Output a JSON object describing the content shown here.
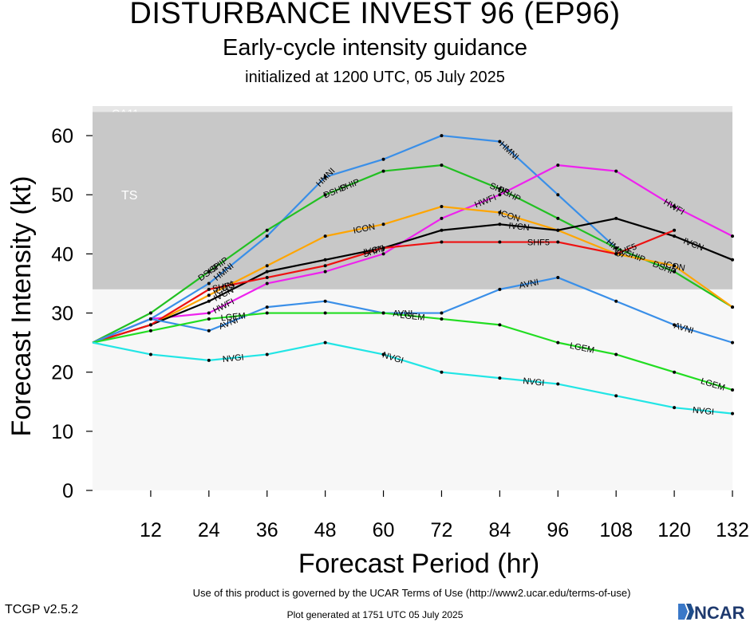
{
  "title": "DISTURBANCE INVEST 96 (EP96)",
  "subtitle": "Early-cycle intensity guidance",
  "initialized": "initialized at 1200 UTC, 05 July 2025",
  "footer": {
    "terms": "Use of this product is governed by the UCAR Terms of Use (http://www2.ucar.edu/terms-of-use)",
    "version": "TCGP v2.5.2",
    "generated": "Plot generated at 1751 UTC   05 July 2025",
    "logo_text": "NCAR"
  },
  "chart_data": {
    "type": "line",
    "xlabel": "Forecast Period (hr)",
    "ylabel": "Forecast Intensity (kt)",
    "xlim": [
      0,
      132
    ],
    "ylim": [
      0,
      65
    ],
    "xticks": [
      12,
      24,
      36,
      48,
      60,
      72,
      84,
      96,
      108,
      120,
      132
    ],
    "yticks": [
      0,
      10,
      20,
      30,
      40,
      50,
      60
    ],
    "bands": [
      {
        "label": "CA11",
        "from": 64,
        "to": 65,
        "color": "#e6e6e6"
      },
      {
        "label": "TS",
        "from": 34,
        "to": 64,
        "color": "#c8c8c8"
      },
      {
        "label": "",
        "from": 0,
        "to": 34,
        "color": "#f7f7f7"
      }
    ],
    "series": [
      {
        "name": "HMNI",
        "color": "#3a8fe8",
        "x": [
          0,
          12,
          24,
          36,
          48,
          60,
          72,
          84,
          96,
          108,
          120
        ],
        "y": [
          25,
          29,
          35,
          43,
          53,
          56,
          60,
          59,
          50,
          41,
          37
        ],
        "label_at": [
          27,
          48,
          86,
          108
        ]
      },
      {
        "name": "DSHP",
        "color": "#22c022",
        "x": [
          0,
          12,
          24,
          36,
          48,
          60,
          72,
          84,
          96,
          108,
          120,
          132
        ],
        "y": [
          25,
          30,
          37,
          44,
          50,
          54,
          55,
          51,
          46,
          41,
          37,
          31
        ],
        "label_at": [
          24,
          50,
          86,
          118
        ]
      },
      {
        "name": "SHIP",
        "color": "#22c022",
        "x": [],
        "y": [],
        "label_at": [
          26,
          53,
          84,
          112
        ]
      },
      {
        "name": "HWFI",
        "color": "#ee22ee",
        "x": [
          0,
          12,
          24,
          36,
          48,
          60,
          72,
          84,
          96,
          108,
          120,
          132
        ],
        "y": [
          25,
          29,
          30,
          35,
          37,
          40,
          46,
          50,
          55,
          54,
          48,
          43
        ],
        "label_at": [
          27,
          81,
          120
        ]
      },
      {
        "name": "ICON",
        "color": "#ffa500",
        "x": [
          0,
          12,
          24,
          36,
          48,
          60,
          72,
          84,
          96,
          108,
          120,
          132
        ],
        "y": [
          25,
          28,
          33,
          38,
          43,
          45,
          48,
          47,
          44,
          40,
          38,
          31
        ],
        "label_at": [
          27,
          56,
          86,
          120
        ]
      },
      {
        "name": "IVCN",
        "color": "#000000",
        "x": [
          0,
          12,
          24,
          36,
          48,
          60,
          72,
          84,
          96,
          108,
          120,
          132
        ],
        "y": [
          25,
          28,
          32,
          37,
          39,
          41,
          44,
          45,
          44,
          46,
          43,
          39
        ],
        "label_at": [
          27,
          58,
          88,
          124
        ]
      },
      {
        "name": "SHF5",
        "color": "#ee1111",
        "x": [
          0,
          12,
          24,
          36,
          48,
          60,
          72,
          84,
          96,
          108,
          120
        ],
        "y": [
          25,
          28,
          34,
          36,
          38,
          41,
          42,
          42,
          42,
          40,
          44
        ],
        "label_at": [
          27,
          58,
          92,
          110
        ]
      },
      {
        "name": "AVNI",
        "color": "#3a8fe8",
        "x": [
          0,
          12,
          24,
          36,
          48,
          60,
          72,
          84,
          96,
          108,
          120,
          132
        ],
        "y": [
          25,
          29,
          27,
          31,
          32,
          30,
          30,
          34,
          36,
          32,
          28,
          25
        ],
        "label_at": [
          28,
          64,
          90,
          122
        ]
      },
      {
        "name": "LGEM",
        "color": "#22dd22",
        "x": [
          0,
          12,
          24,
          36,
          48,
          60,
          72,
          84,
          96,
          108,
          120,
          132
        ],
        "y": [
          25,
          27,
          29,
          30,
          30,
          30,
          29,
          28,
          25,
          23,
          20,
          17
        ],
        "label_at": [
          29,
          66,
          101,
          128
        ]
      },
      {
        "name": "NVGI",
        "color": "#22e5e5",
        "x": [
          0,
          12,
          24,
          36,
          48,
          60,
          72,
          84,
          96,
          108,
          120,
          132
        ],
        "y": [
          25,
          23,
          22,
          23,
          25,
          23,
          20,
          19,
          18,
          16,
          14,
          13
        ],
        "label_at": [
          29,
          62,
          91,
          126
        ]
      }
    ]
  }
}
